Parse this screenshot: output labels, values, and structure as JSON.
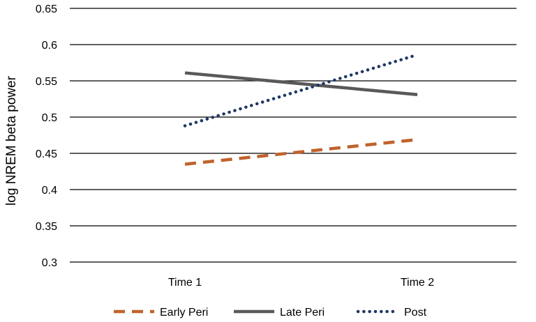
{
  "chart_data": {
    "type": "line",
    "title": "",
    "xlabel": "",
    "ylabel": "log NREM beta power",
    "categories": [
      "Time 1",
      "Time 2"
    ],
    "ylim": [
      0.3,
      0.65
    ],
    "yticks": [
      0.3,
      0.35,
      0.4,
      0.45,
      0.5,
      0.55,
      0.6,
      0.65
    ],
    "grid": true,
    "legend_position": "bottom",
    "series": [
      {
        "name": "Early Peri",
        "values": [
          0.435,
          0.469
        ],
        "color": "#c0622d",
        "line_style": "dashed"
      },
      {
        "name": "Late Peri",
        "values": [
          0.561,
          0.531
        ],
        "color": "#595959",
        "line_style": "solid"
      },
      {
        "name": "Post",
        "values": [
          0.488,
          0.586
        ],
        "color": "#1f3864",
        "line_style": "dotted"
      }
    ]
  }
}
